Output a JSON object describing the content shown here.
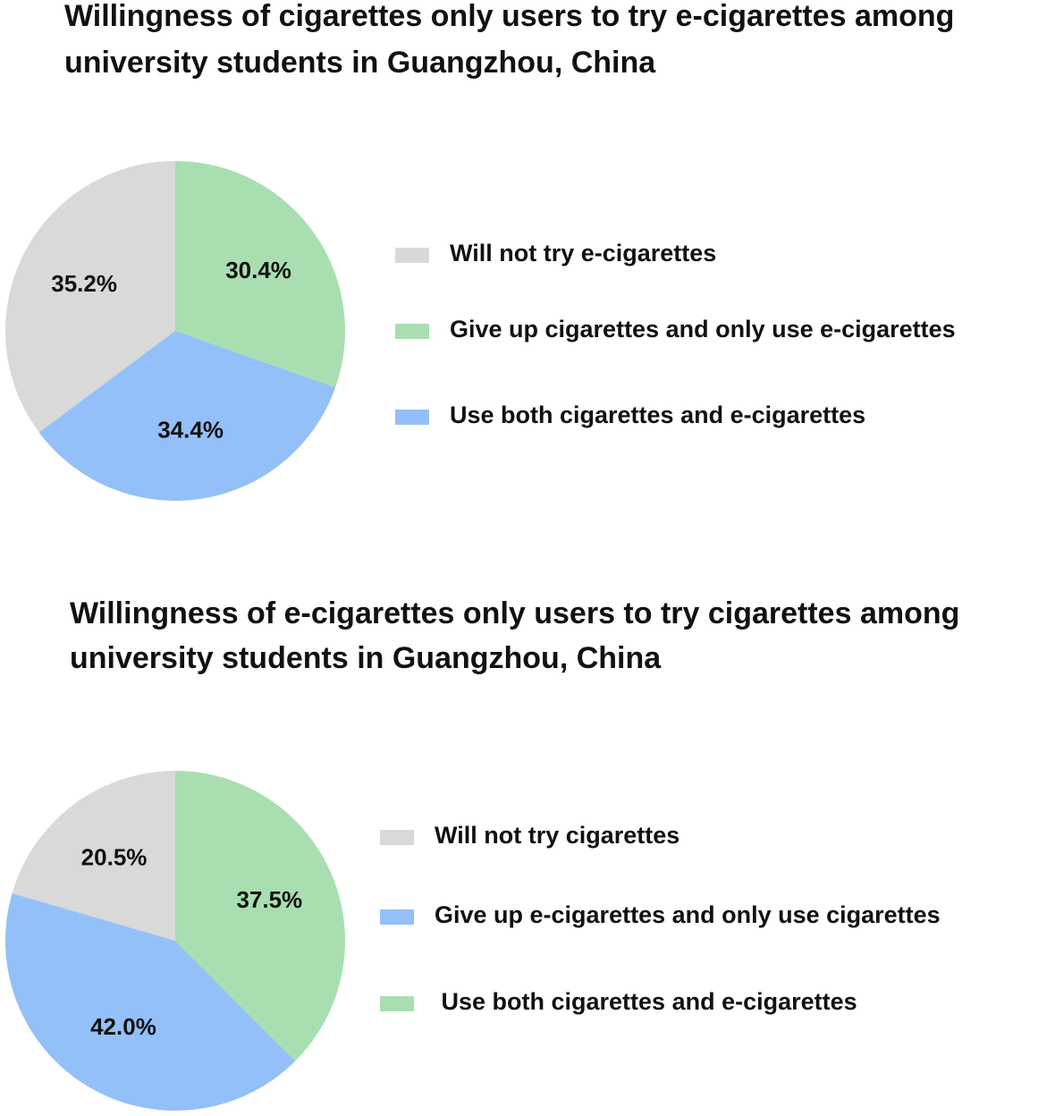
{
  "chart_data": [
    {
      "type": "pie",
      "title": "Willingness of cigarettes only users to try e-cigarettes among university students in Guangzhou, China",
      "categories": [
        "Will not try e-cigarettes",
        "Give up cigarettes and only use e-cigarettes",
        "Use both cigarettes and e-cigarettes"
      ],
      "values": [
        35.2,
        30.4,
        34.4
      ],
      "value_labels": [
        "35.2%",
        "30.4%",
        "34.4%"
      ],
      "colors": [
        "#d9d9d9",
        "#a9dfb0",
        "#93c0f8"
      ],
      "direction": "clockwise",
      "legend": "right"
    },
    {
      "type": "pie",
      "title": "Willingness of e-cigarettes only users to try cigarettes among university students in Guangzhou, China",
      "categories": [
        "Will not try cigarettes",
        "Give up e-cigarettes and only use cigarettes",
        " Use both cigarettes and e-cigarettes"
      ],
      "values": [
        20.5,
        42.0,
        37.5
      ],
      "value_labels": [
        "20.5%",
        "42.0%",
        "37.5%"
      ],
      "colors": [
        "#d9d9d9",
        "#93c0f8",
        "#a9dfb0"
      ],
      "direction": "counterclockwise",
      "legend": "right"
    }
  ]
}
